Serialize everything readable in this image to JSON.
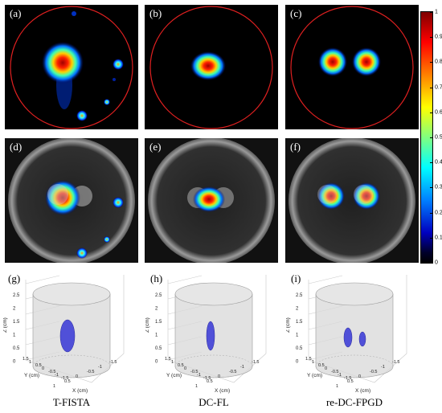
{
  "panels": {
    "a": {
      "label": "(a)"
    },
    "b": {
      "label": "(b)"
    },
    "c": {
      "label": "(c)"
    },
    "d": {
      "label": "(d)"
    },
    "e": {
      "label": "(e)"
    },
    "f": {
      "label": "(f)"
    },
    "g": {
      "label": "(g)"
    },
    "h": {
      "label": "(h)"
    },
    "i": {
      "label": "(i)"
    }
  },
  "colorbar": {
    "ticks": [
      "1",
      "0.9",
      "0.8",
      "0.7",
      "0.6",
      "0.5",
      "0.4",
      "0.3",
      "0.2",
      "0.1",
      "0"
    ]
  },
  "axes3d": {
    "z_label": "Z (cm)",
    "y_label": "Y (cm)",
    "x_label": "X (cm)",
    "z_ticks": [
      "2.5",
      "2",
      "1.5",
      "1",
      "0.5",
      "0"
    ],
    "y_ticks": [
      "1.5",
      "1",
      "0.5",
      "0",
      "-0.5",
      "-1",
      "-1.5"
    ],
    "x_ticks": [
      "1",
      "0.5",
      "0",
      "-0.5",
      "-1",
      "-1.5"
    ]
  },
  "captions": {
    "col1": "T-FISTA",
    "col2": "DC-FL",
    "col3": "re-DC-FPGD"
  },
  "colors": {
    "circle": "#e02020",
    "blob": "#5050d8"
  }
}
